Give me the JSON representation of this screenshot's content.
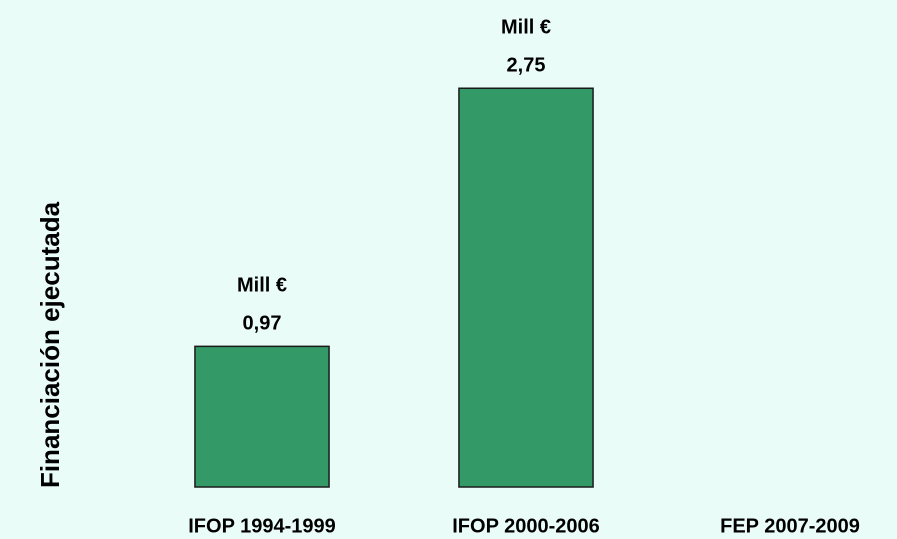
{
  "chart_data": {
    "type": "bar",
    "y_label": "Financiación ejecutada",
    "categories": [
      "IFOP 1994-1999",
      "IFOP 2000-2006",
      "FEP 2007-2009"
    ],
    "values": [
      0.97,
      2.75,
      null
    ],
    "value_labels": [
      "0,97",
      "2,75",
      null
    ],
    "unit_label": "Mill €",
    "color": "#339966",
    "ylim": [
      0,
      3
    ]
  }
}
